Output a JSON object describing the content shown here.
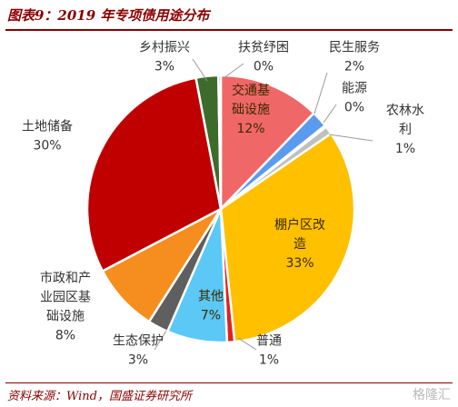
{
  "header": {
    "title": "图表9：2019 年专项债用途分布"
  },
  "footer": {
    "source": "资料来源：Wind，国盛证券研究所",
    "watermark": "格隆汇"
  },
  "chart_data": {
    "type": "pie",
    "title": "图表9：2019 年专项债用途分布",
    "start_angle_deg": 0,
    "direction": "clockwise",
    "slices": [
      {
        "name": "交通基础设施",
        "label_lines": [
          "交通基",
          "础设施"
        ],
        "pct_text": "12%",
        "value": 12.3,
        "color": "#F06767"
      },
      {
        "name": "民生服务",
        "label_lines": [
          "民生服务"
        ],
        "pct_text": "2%",
        "value": 2.0,
        "color": "#5B9BEF"
      },
      {
        "name": "能源",
        "label_lines": [
          "能源"
        ],
        "pct_text": "0%",
        "value": 0.2,
        "color": "#8E8E8E"
      },
      {
        "name": "农林水利",
        "label_lines": [
          "农林水",
          "利"
        ],
        "pct_text": "1%",
        "value": 1.0,
        "color": "#BFBFBF"
      },
      {
        "name": "棚户区改造",
        "label_lines": [
          "棚户区改",
          "造"
        ],
        "pct_text": "33%",
        "value": 33.0,
        "color": "#FFC000"
      },
      {
        "name": "普通",
        "label_lines": [
          "普通"
        ],
        "pct_text": "1%",
        "value": 0.9,
        "color": "#E02020"
      },
      {
        "name": "其他",
        "label_lines": [
          "其他"
        ],
        "pct_text": "7%",
        "value": 7.3,
        "color": "#5BC8F5"
      },
      {
        "name": "生态保护",
        "label_lines": [
          "生态保护"
        ],
        "pct_text": "3%",
        "value": 2.5,
        "color": "#5F5F5F"
      },
      {
        "name": "市政和产业园区基础设施",
        "label_lines": [
          "市政和产",
          "业园区基",
          "础设施"
        ],
        "pct_text": "8%",
        "value": 8.3,
        "color": "#F58E1E"
      },
      {
        "name": "土地储备",
        "label_lines": [
          "土地储备"
        ],
        "pct_text": "30%",
        "value": 29.8,
        "color": "#C00000"
      },
      {
        "name": "乡村振兴",
        "label_lines": [
          "乡村振兴"
        ],
        "pct_text": "3%",
        "value": 2.7,
        "color": "#3D6B2C"
      },
      {
        "name": "扶贫纾困",
        "label_lines": [
          "扶贫纾困"
        ],
        "pct_text": "0%",
        "value": 0.3,
        "color": "#7A5AA8"
      }
    ]
  }
}
